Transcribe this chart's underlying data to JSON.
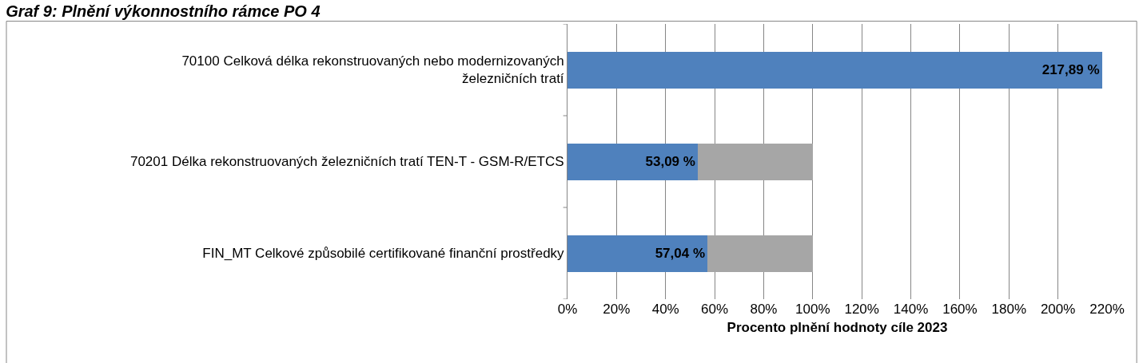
{
  "chart_data": {
    "type": "bar",
    "orientation": "horizontal",
    "stacked": true,
    "title": "Graf 9: Plnění výkonnostního rámce PO 4",
    "xlabel": "Procento plnění hodnoty cíle 2023",
    "categories": [
      "70100 Celková délka rekonstruovaných nebo modernizovaných\nželezničních tratí",
      "70201 Délka rekonstruovaných železničních tratí TEN-T - GSM-R/ETCS",
      "FIN_MT Celkové způsobilé certifikované finanční prostředky"
    ],
    "series": [
      {
        "color": "#4f81bd",
        "values": [
          217.89,
          53.09,
          57.04
        ],
        "value_labels": [
          "217,89 %",
          "53,09 %",
          "57,04 %"
        ]
      },
      {
        "color": "#a6a6a6",
        "values": [
          0,
          46.9,
          43.0
        ]
      }
    ],
    "xlim": [
      0,
      220
    ],
    "xticks": [
      {
        "value": 0,
        "label": "0%"
      },
      {
        "value": 20,
        "label": "20%"
      },
      {
        "value": 40,
        "label": "40%"
      },
      {
        "value": 60,
        "label": "60%"
      },
      {
        "value": 80,
        "label": "80%"
      },
      {
        "value": 100,
        "label": "100%"
      },
      {
        "value": 120,
        "label": "120%"
      },
      {
        "value": 140,
        "label": "140%"
      },
      {
        "value": 160,
        "label": "160%"
      },
      {
        "value": 180,
        "label": "180%"
      },
      {
        "value": 200,
        "label": "200%"
      },
      {
        "value": 220,
        "label": "220%"
      }
    ],
    "grid": "x"
  }
}
